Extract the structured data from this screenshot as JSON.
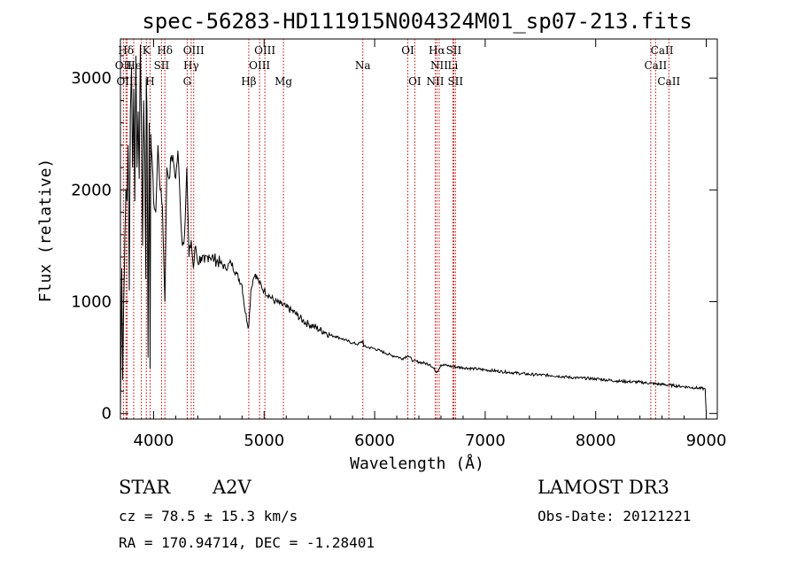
{
  "chart_data": {
    "type": "line",
    "title": "spec-56283-HD111915N004324M01_sp07-213.fits",
    "xlabel": "Wavelength (Å)",
    "ylabel": "Flux (relative)",
    "xlim": [
      3700,
      9100
    ],
    "ylim": [
      -50,
      3350
    ],
    "xticks": [
      "4000",
      "5000",
      "6000",
      "7000",
      "8000",
      "9000"
    ],
    "yticks": [
      "0",
      "1000",
      "2000",
      "3000"
    ],
    "xtick_values": [
      4000,
      5000,
      6000,
      7000,
      8000,
      9000
    ],
    "ytick_values": [
      0,
      1000,
      2000,
      3000
    ],
    "series": [
      {
        "name": "spectrum",
        "x": [
          3700,
          3712,
          3720,
          3730,
          3740,
          3750,
          3760,
          3770,
          3780,
          3790,
          3800,
          3810,
          3820,
          3830,
          3840,
          3850,
          3860,
          3870,
          3880,
          3890,
          3900,
          3910,
          3920,
          3930,
          3934,
          3940,
          3950,
          3960,
          3968,
          3975,
          3990,
          4000,
          4020,
          4040,
          4060,
          4080,
          4102,
          4120,
          4140,
          4160,
          4180,
          4200,
          4220,
          4240,
          4260,
          4280,
          4300,
          4320,
          4340,
          4360,
          4380,
          4400,
          4430,
          4460,
          4500,
          4550,
          4600,
          4650,
          4700,
          4750,
          4800,
          4830,
          4861,
          4880,
          4900,
          4920,
          4950,
          5000,
          5050,
          5100,
          5150,
          5200,
          5250,
          5300,
          5350,
          5400,
          5450,
          5500,
          5550,
          5600,
          5650,
          5700,
          5750,
          5800,
          5850,
          5895,
          5900,
          5950,
          6000,
          6050,
          6100,
          6150,
          6200,
          6250,
          6300,
          6350,
          6400,
          6450,
          6500,
          6563,
          6600,
          6650,
          6700,
          6800,
          6900,
          7000,
          7200,
          7400,
          7600,
          7800,
          8000,
          8200,
          8400,
          8500,
          8600,
          8700,
          8800,
          8900,
          8990,
          9000
        ],
        "values": [
          0,
          1300,
          300,
          1000,
          1600,
          2000,
          1900,
          2400,
          1100,
          2700,
          3100,
          2200,
          2900,
          1900,
          3200,
          2200,
          2700,
          2100,
          3300,
          2600,
          1500,
          2800,
          2300,
          1200,
          3000,
          2700,
          500,
          2600,
          400,
          2500,
          2200,
          1900,
          1800,
          2400,
          2000,
          1850,
          1000,
          2200,
          2100,
          2300,
          2250,
          2100,
          2350,
          1900,
          1500,
          1600,
          2200,
          1400,
          1550,
          1300,
          1500,
          1350,
          1400,
          1350,
          1420,
          1380,
          1350,
          1300,
          1350,
          1250,
          1150,
          900,
          780,
          1100,
          1200,
          1250,
          1180,
          1100,
          1050,
          1000,
          980,
          950,
          920,
          880,
          830,
          800,
          780,
          750,
          730,
          700,
          690,
          670,
          650,
          630,
          620,
          650,
          600,
          590,
          580,
          560,
          540,
          520,
          510,
          490,
          520,
          470,
          460,
          450,
          440,
          370,
          435,
          430,
          420,
          410,
          400,
          390,
          370,
          350,
          340,
          320,
          310,
          290,
          280,
          270,
          260,
          250,
          240,
          230,
          220,
          10
        ]
      }
    ],
    "line_markers": [
      {
        "label": "Hδ",
        "x": 3750,
        "row": 1
      },
      {
        "label": "K",
        "x": 3934,
        "row": 1
      },
      {
        "label": "Hδ",
        "x": 4102,
        "row": 1
      },
      {
        "label": "OIII",
        "x": 4363,
        "row": 1
      },
      {
        "label": "OIII",
        "x": 5007,
        "row": 1
      },
      {
        "label": "OI",
        "x": 6300,
        "row": 1
      },
      {
        "label": "Hα",
        "x": 6563,
        "row": 1
      },
      {
        "label": "SII",
        "x": 6716,
        "row": 1
      },
      {
        "label": "CaII",
        "x": 8600,
        "row": 1
      },
      {
        "label": "OII",
        "x": 3727,
        "row": 2
      },
      {
        "label": "He",
        "x": 3820,
        "row": 2
      },
      {
        "label": "SII",
        "x": 4072,
        "row": 2
      },
      {
        "label": "Hγ",
        "x": 4340,
        "row": 2
      },
      {
        "label": "OIII",
        "x": 4959,
        "row": 2
      },
      {
        "label": "Na",
        "x": 5893,
        "row": 2
      },
      {
        "label": "NII",
        "x": 6584,
        "row": 2
      },
      {
        "label": "Li",
        "x": 6708,
        "row": 2
      },
      {
        "label": "CaII",
        "x": 8542,
        "row": 2
      },
      {
        "label": "OIII",
        "x": 3760,
        "row": 3
      },
      {
        "label": "H",
        "x": 3968,
        "row": 3
      },
      {
        "label": "G",
        "x": 4304,
        "row": 3
      },
      {
        "label": "Hβ",
        "x": 4861,
        "row": 3
      },
      {
        "label": "Mg",
        "x": 5175,
        "row": 3
      },
      {
        "label": "OI",
        "x": 6363,
        "row": 3
      },
      {
        "label": "NII",
        "x": 6548,
        "row": 3
      },
      {
        "label": "SII",
        "x": 6731,
        "row": 3
      },
      {
        "label": "CaII",
        "x": 8662,
        "row": 3
      }
    ],
    "line_positions": [
      3727,
      3750,
      3760,
      3820,
      3889,
      3934,
      3968,
      4072,
      4102,
      4304,
      4340,
      4363,
      4861,
      4959,
      5007,
      5175,
      5893,
      6300,
      6363,
      6548,
      6563,
      6584,
      6708,
      6716,
      6731,
      8498,
      8542,
      8662
    ]
  },
  "info": {
    "class_label": "STAR",
    "subclass": "A2V",
    "survey": "LAMOST DR3",
    "redshift": "cz = 78.5 ± 15.3 km/s",
    "obs_date": "Obs-Date: 20121221",
    "coords": "RA = 170.94714, DEC =  -1.28401"
  }
}
